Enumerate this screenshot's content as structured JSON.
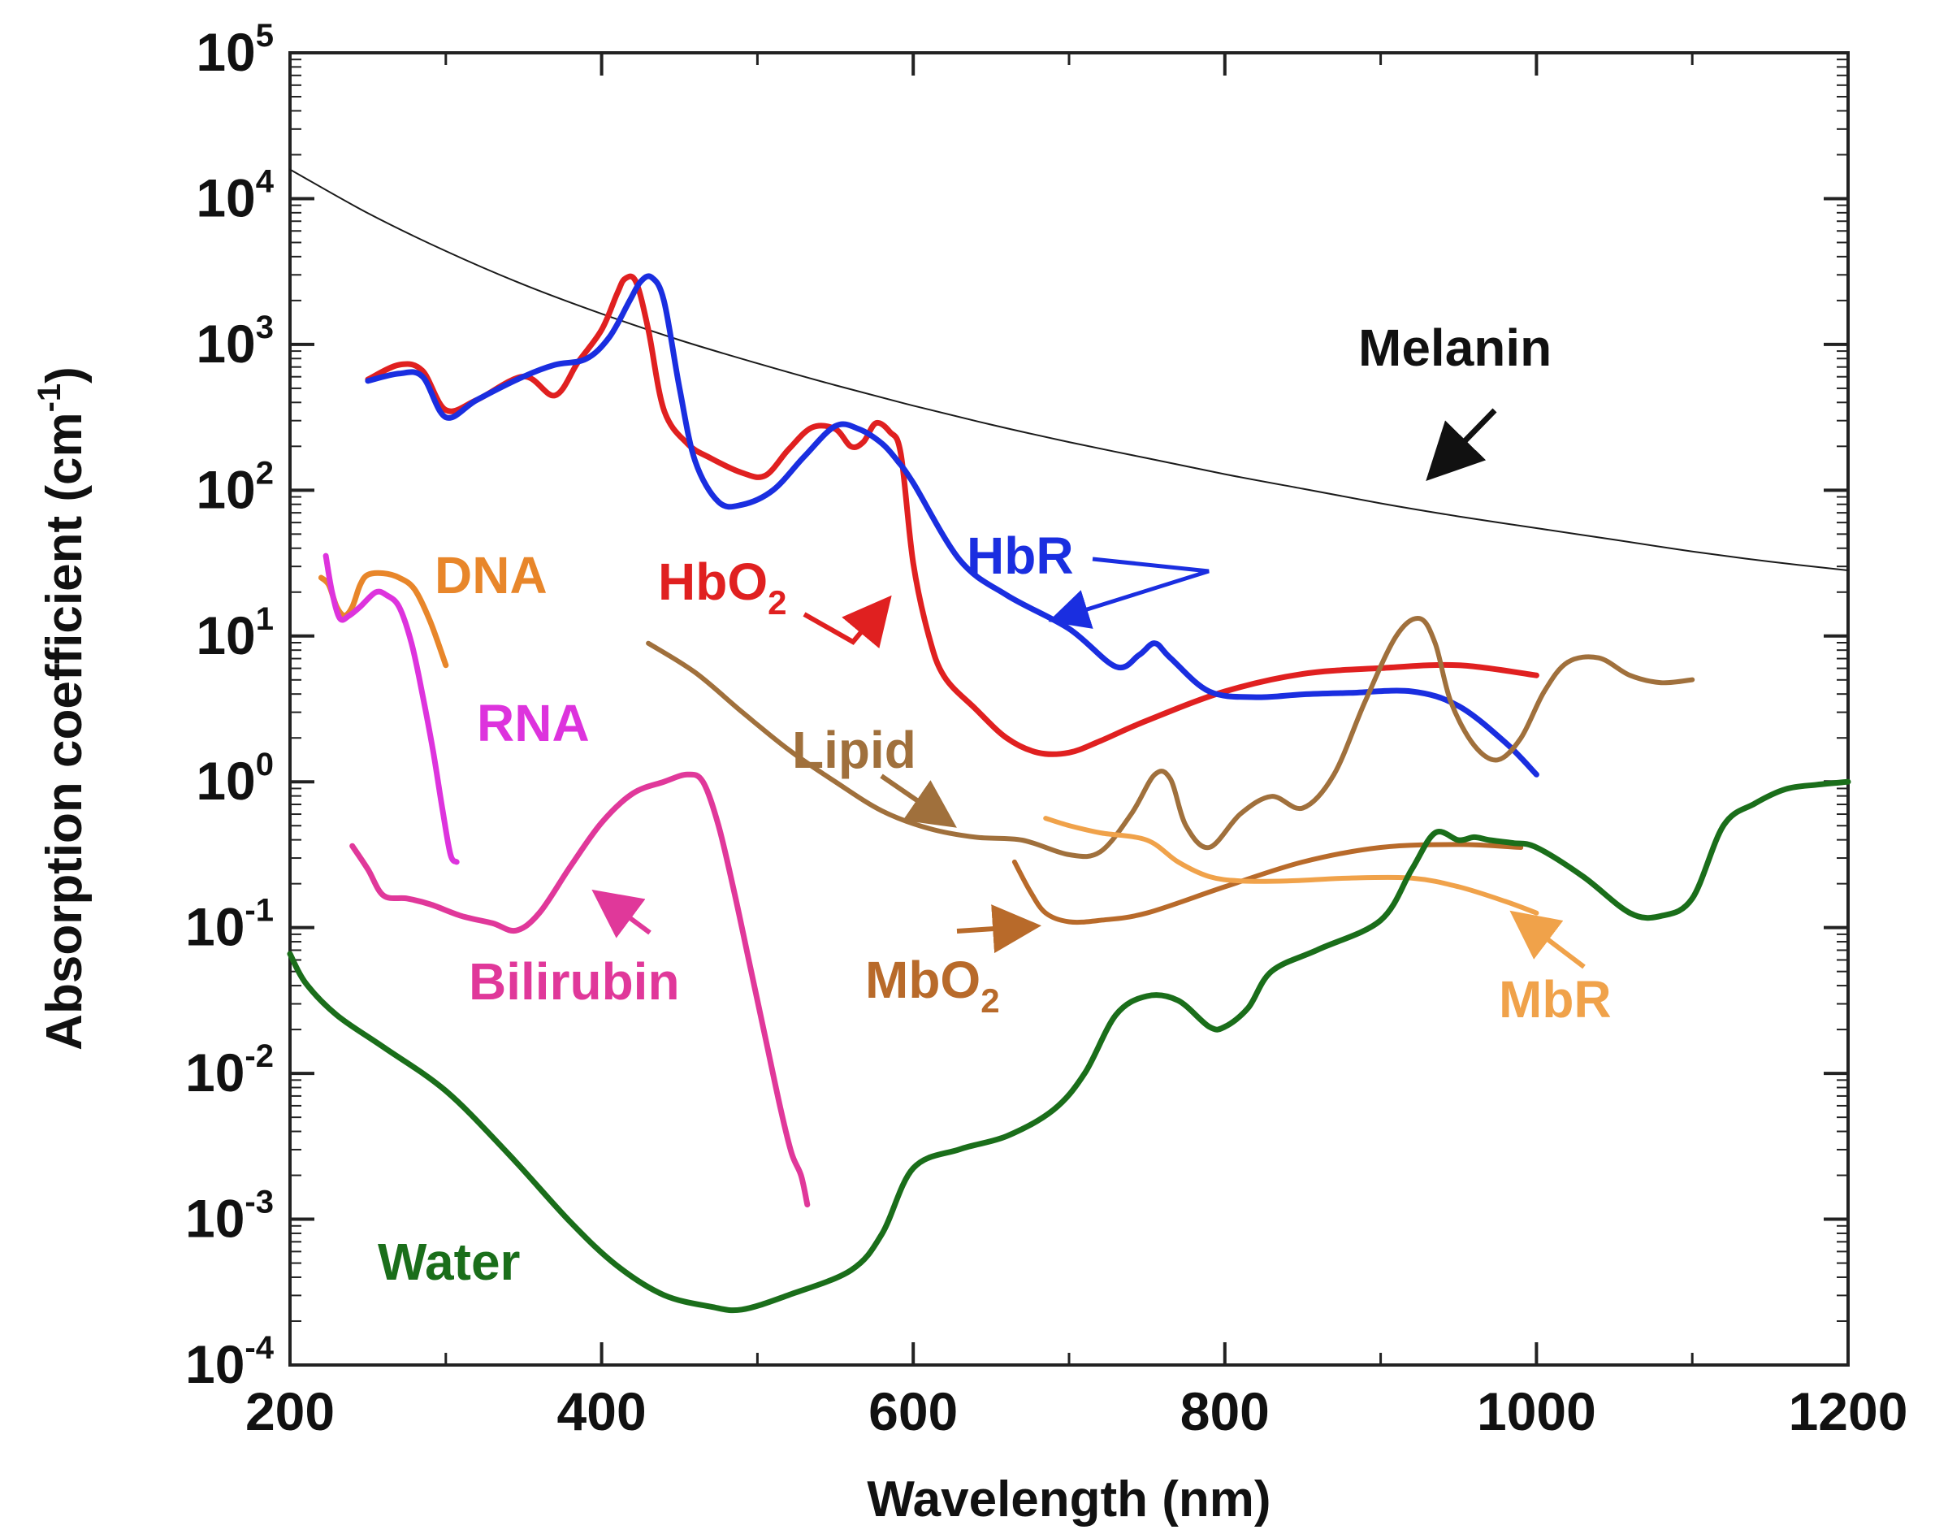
{
  "chart_data": {
    "type": "line",
    "xlabel": "Wavelength (nm)",
    "ylabel": "Absorption coefficient (cm",
    "ylabel_sup": "-1",
    "ylabel_close": ")",
    "y_scale": "log",
    "xlim": [
      200,
      1200
    ],
    "ylim_log10": [
      -4,
      5
    ],
    "x_ticks": [
      {
        "value": 200,
        "label": "200"
      },
      {
        "value": 400,
        "label": "400"
      },
      {
        "value": 600,
        "label": "600"
      },
      {
        "value": 800,
        "label": "800"
      },
      {
        "value": 1000,
        "label": "1000"
      },
      {
        "value": 1200,
        "label": "1200"
      }
    ],
    "y_ticks": [
      {
        "exp": 5,
        "base": "10",
        "sup": "5"
      },
      {
        "exp": 4,
        "base": "10",
        "sup": "4"
      },
      {
        "exp": 3,
        "base": "10",
        "sup": "3"
      },
      {
        "exp": 2,
        "base": "10",
        "sup": "2"
      },
      {
        "exp": 1,
        "base": "10",
        "sup": "1"
      },
      {
        "exp": 0,
        "base": "10",
        "sup": "0"
      },
      {
        "exp": -1,
        "base": "10",
        "sup": "-1"
      },
      {
        "exp": -2,
        "base": "10",
        "sup": "-2"
      },
      {
        "exp": -3,
        "base": "10",
        "sup": "-3"
      },
      {
        "exp": -4,
        "base": "10",
        "sup": "-4"
      }
    ],
    "series": [
      {
        "name": "Melanin",
        "color": "#1a1a1a",
        "width": 2,
        "x": [
          200,
          250,
          300,
          350,
          400,
          450,
          500,
          550,
          600,
          650,
          700,
          750,
          800,
          850,
          900,
          950,
          1000,
          1050,
          1100,
          1150,
          1200
        ],
        "log_y": [
          4.2,
          3.9,
          3.64,
          3.41,
          3.21,
          3.03,
          2.87,
          2.72,
          2.58,
          2.45,
          2.33,
          2.22,
          2.11,
          2.01,
          1.91,
          1.82,
          1.74,
          1.66,
          1.58,
          1.51,
          1.45
        ]
      },
      {
        "name": "HbO2",
        "color": "#e02020",
        "width": 7,
        "x": [
          250,
          270,
          285,
          300,
          320,
          350,
          370,
          385,
          400,
          410,
          415,
          422,
          430,
          440,
          455,
          470,
          490,
          505,
          520,
          535,
          550,
          560,
          568,
          576,
          585,
          592,
          600,
          610,
          620,
          640,
          660,
          680,
          700,
          720,
          750,
          800,
          850,
          900,
          950,
          1000
        ],
        "log_y": [
          2.76,
          2.86,
          2.82,
          2.55,
          2.62,
          2.78,
          2.65,
          2.88,
          3.1,
          3.35,
          3.45,
          3.43,
          3.1,
          2.55,
          2.32,
          2.22,
          2.12,
          2.1,
          2.28,
          2.43,
          2.42,
          2.3,
          2.33,
          2.46,
          2.4,
          2.25,
          1.5,
          1.0,
          0.72,
          0.5,
          0.3,
          0.2,
          0.2,
          0.28,
          0.42,
          0.62,
          0.74,
          0.78,
          0.8,
          0.73
        ]
      },
      {
        "name": "HbR",
        "color": "#1a2ee0",
        "width": 7,
        "x": [
          250,
          270,
          285,
          300,
          320,
          350,
          370,
          390,
          405,
          418,
          425,
          432,
          440,
          450,
          460,
          475,
          490,
          510,
          530,
          550,
          565,
          580,
          590,
          600,
          630,
          660,
          700,
          730,
          745,
          755,
          765,
          790,
          820,
          850,
          880,
          920,
          950,
          980,
          1000
        ],
        "log_y": [
          2.75,
          2.8,
          2.78,
          2.5,
          2.62,
          2.78,
          2.86,
          2.9,
          3.05,
          3.3,
          3.43,
          3.46,
          3.3,
          2.7,
          2.2,
          1.92,
          1.9,
          2.0,
          2.23,
          2.44,
          2.42,
          2.32,
          2.2,
          2.05,
          1.52,
          1.28,
          1.05,
          0.79,
          0.87,
          0.95,
          0.85,
          0.62,
          0.58,
          0.6,
          0.61,
          0.62,
          0.52,
          0.27,
          0.05
        ]
      },
      {
        "name": "DNA",
        "color": "#e8862a",
        "width": 7,
        "x": [
          220,
          225,
          230,
          235,
          240,
          245,
          250,
          260,
          270,
          280,
          290,
          300
        ],
        "log_y": [
          1.4,
          1.35,
          1.2,
          1.14,
          1.2,
          1.35,
          1.42,
          1.43,
          1.4,
          1.32,
          1.1,
          0.8
        ]
      },
      {
        "name": "RNA",
        "color": "#dd33dd",
        "width": 7,
        "x": [
          223,
          227,
          232,
          238,
          245,
          255,
          262,
          270,
          278,
          285,
          292,
          298,
          303,
          307
        ],
        "log_y": [
          1.55,
          1.3,
          1.12,
          1.14,
          1.2,
          1.3,
          1.28,
          1.2,
          0.95,
          0.6,
          0.2,
          -0.2,
          -0.5,
          -0.55
        ]
      },
      {
        "name": "Bilirubin",
        "color": "#e0389a",
        "width": 7,
        "x": [
          240,
          250,
          260,
          275,
          290,
          310,
          330,
          345,
          360,
          380,
          400,
          420,
          440,
          455,
          465,
          475,
          485,
          495,
          505,
          515,
          522,
          528,
          532
        ],
        "log_y": [
          -0.44,
          -0.6,
          -0.78,
          -0.8,
          -0.84,
          -0.92,
          -0.97,
          -1.02,
          -0.9,
          -0.58,
          -0.28,
          -0.08,
          0.0,
          0.05,
          0.0,
          -0.3,
          -0.75,
          -1.25,
          -1.75,
          -2.25,
          -2.55,
          -2.7,
          -2.9
        ]
      },
      {
        "name": "Lipid",
        "color": "#a0703c",
        "width": 6,
        "x": [
          430,
          460,
          490,
          520,
          550,
          580,
          610,
          640,
          670,
          700,
          720,
          740,
          755,
          765,
          775,
          790,
          810,
          830,
          850,
          870,
          890,
          910,
          925,
          935,
          945,
          960,
          975,
          990,
          1005,
          1020,
          1040,
          1060,
          1080,
          1100
        ],
        "log_y": [
          0.95,
          0.75,
          0.48,
          0.22,
          0.0,
          -0.2,
          -0.32,
          -0.38,
          -0.4,
          -0.5,
          -0.48,
          -0.22,
          0.05,
          0.02,
          -0.3,
          -0.45,
          -0.22,
          -0.1,
          -0.18,
          0.05,
          0.55,
          1.0,
          1.12,
          0.95,
          0.55,
          0.25,
          0.15,
          0.3,
          0.62,
          0.82,
          0.85,
          0.73,
          0.68,
          0.7
        ]
      },
      {
        "name": "MbO2",
        "color": "#b86a2a",
        "width": 6,
        "x": [
          665,
          675,
          685,
          700,
          720,
          750,
          800,
          850,
          900,
          950,
          990
        ],
        "log_y": [
          -0.55,
          -0.75,
          -0.9,
          -0.96,
          -0.95,
          -0.9,
          -0.72,
          -0.55,
          -0.45,
          -0.43,
          -0.45
        ]
      },
      {
        "name": "MbR",
        "color": "#f0a24a",
        "width": 6,
        "x": [
          685,
          700,
          720,
          750,
          770,
          790,
          810,
          840,
          880,
          920,
          950,
          980,
          1000
        ],
        "log_y": [
          -0.25,
          -0.3,
          -0.35,
          -0.4,
          -0.55,
          -0.65,
          -0.68,
          -0.68,
          -0.66,
          -0.66,
          -0.72,
          -0.82,
          -0.9
        ]
      },
      {
        "name": "Water",
        "color": "#1a6e1a",
        "width": 7,
        "x": [
          200,
          210,
          230,
          260,
          300,
          340,
          380,
          410,
          440,
          470,
          490,
          520,
          560,
          580,
          600,
          630,
          660,
          690,
          710,
          730,
          750,
          770,
          790,
          800,
          815,
          830,
          860,
          900,
          920,
          935,
          950,
          960,
          970,
          985,
          1000,
          1030,
          1060,
          1080,
          1100,
          1120,
          1140,
          1160,
          1180,
          1200
        ],
        "log_y": [
          -1.18,
          -1.38,
          -1.6,
          -1.82,
          -2.12,
          -2.55,
          -3.02,
          -3.32,
          -3.52,
          -3.6,
          -3.62,
          -3.52,
          -3.35,
          -3.1,
          -2.65,
          -2.52,
          -2.43,
          -2.25,
          -2.0,
          -1.6,
          -1.47,
          -1.5,
          -1.68,
          -1.68,
          -1.55,
          -1.3,
          -1.15,
          -0.95,
          -0.6,
          -0.35,
          -0.4,
          -0.38,
          -0.4,
          -0.42,
          -0.45,
          -0.65,
          -0.9,
          -0.92,
          -0.8,
          -0.3,
          -0.15,
          -0.05,
          -0.02,
          0.0
        ]
      }
    ],
    "labels": {
      "melanin": "Melanin",
      "hbo2_main": "HbO",
      "hbo2_sub": "2",
      "hbr": "HbR",
      "dna": "DNA",
      "rna": "RNA",
      "bilirubin": "Bilirubin",
      "lipid": "Lipid",
      "mbo2_main": "MbO",
      "mbo2_sub": "2",
      "mbr": "MbR",
      "water": "Water"
    }
  }
}
